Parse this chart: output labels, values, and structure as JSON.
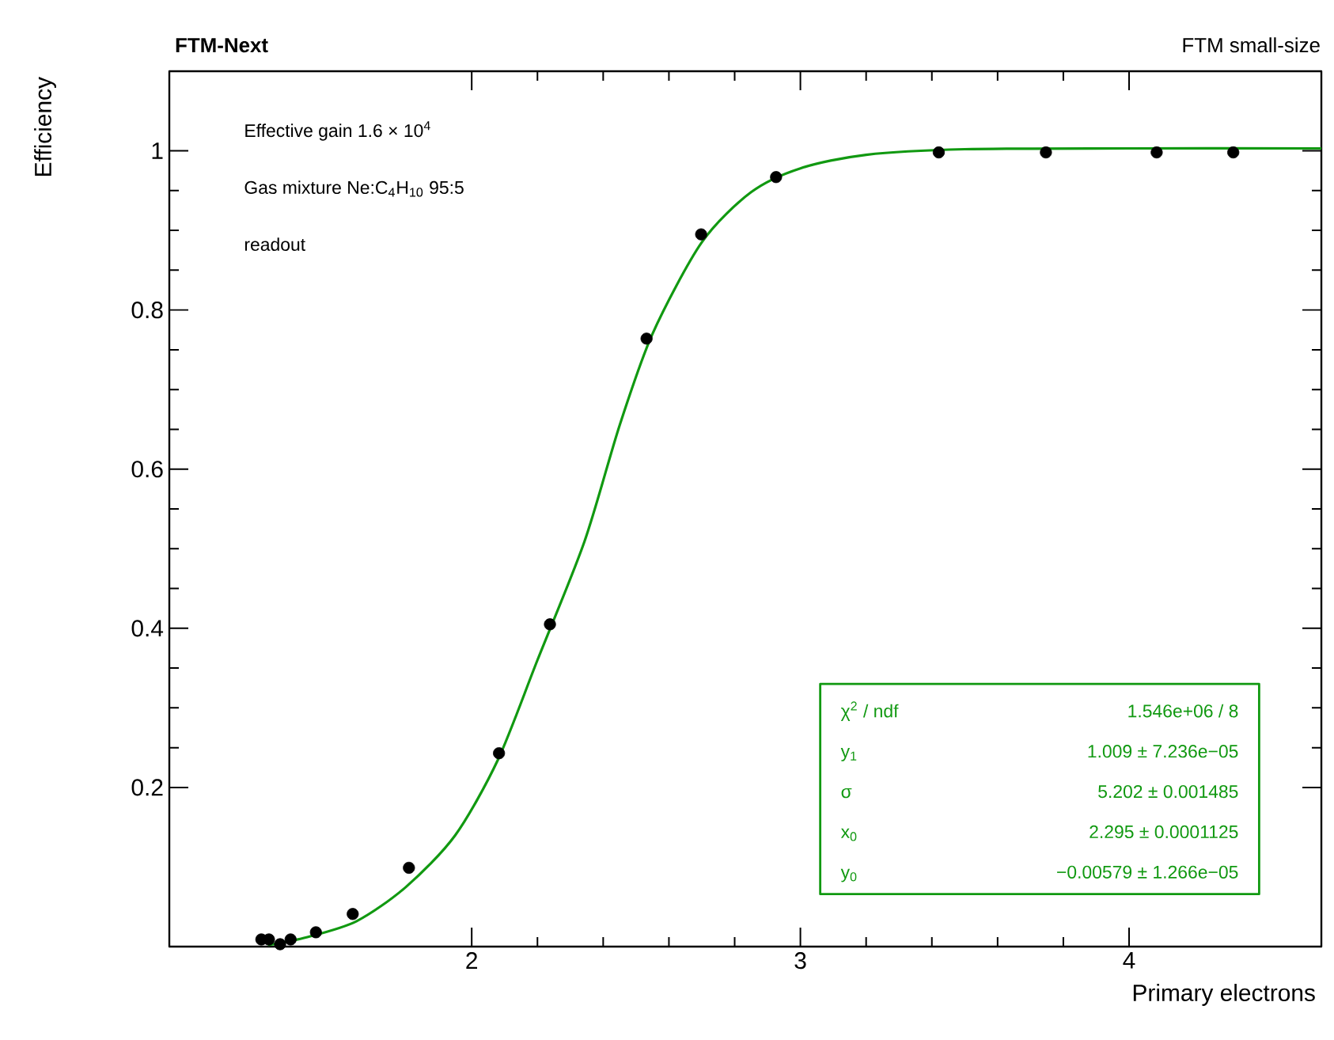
{
  "chart_data": {
    "type": "scatter",
    "title": "FTM-Next",
    "subtitle": "FTM small-size",
    "xlabel": "Primary electrons",
    "ylabel": "Efficiency",
    "xlim": [
      1.08,
      4.585
    ],
    "ylim": [
      0,
      1.1
    ],
    "xticks": [
      2,
      3,
      4
    ],
    "yticks": [
      0.2,
      0.4,
      0.6,
      0.8,
      1
    ],
    "grid": false,
    "marker": "circle",
    "line_style": "solid",
    "series": [
      {
        "color": "#000000",
        "x": [
          1.36,
          1.383,
          1.417,
          1.449,
          1.526,
          1.638,
          1.809,
          2.083,
          2.238,
          2.532,
          2.698,
          2.926,
          3.421,
          3.747,
          4.084,
          4.317
        ],
        "values": [
          0.009,
          0.009,
          0.003,
          0.009,
          0.018,
          0.041,
          0.099,
          0.243,
          0.405,
          0.764,
          0.895,
          0.967,
          0.998,
          0.998,
          0.998,
          0.998
        ]
      },
      {
        "type": "line",
        "marker": "none",
        "color": "#119911",
        "x": [
          1.38,
          1.5,
          1.65,
          1.8,
          1.95,
          2.08,
          2.2,
          2.343,
          2.45,
          2.55,
          2.7,
          2.85,
          3.0,
          3.2,
          3.5,
          4.0,
          4.585
        ],
        "values": [
          0.002,
          0.012,
          0.032,
          0.075,
          0.14,
          0.235,
          0.36,
          0.509,
          0.655,
          0.77,
          0.885,
          0.948,
          0.978,
          0.995,
          1.002,
          1.003,
          1.003
        ]
      }
    ],
    "annotations": [
      "Effective gain 1.6 × 10$^{4}$",
      "Gas mixture Ne:C$_{4}$H$_{10}$ 95:5",
      "readout",
      "χ$^{2}$ / ndf",
      "1.546e+06 / 8",
      "y$_{1}$",
      "1.009 ± 7.236e−05",
      "σ",
      "5.202 ± 0.001485",
      "x$_{0}$",
      "2.295 ± 0.0001125",
      "y$_{0}$",
      "−0.00579 ± 1.266e−05"
    ]
  }
}
